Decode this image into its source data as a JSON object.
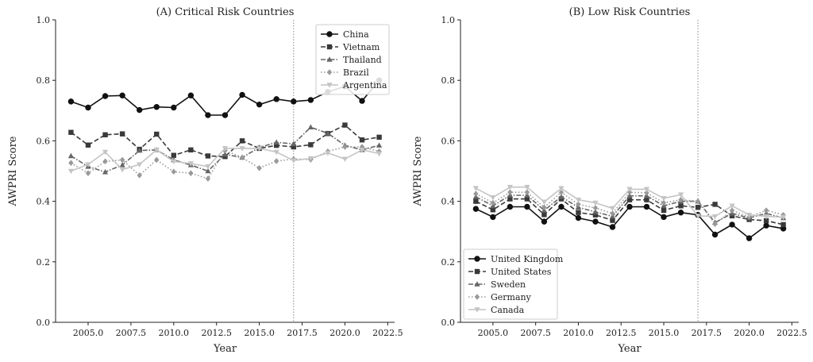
{
  "chart_data": [
    {
      "type": "line",
      "title": "(A) Critical Risk Countries",
      "xlabel": "Year",
      "ylabel": "AWPRI Score",
      "xlim": [
        2003.1,
        2022.9
      ],
      "ylim": [
        0.0,
        1.0
      ],
      "xticks": [
        2005.0,
        2007.5,
        2010.0,
        2012.5,
        2015.0,
        2017.5,
        2020.0,
        2022.5
      ],
      "xtick_labels": [
        "2005.0",
        "2007.5",
        "2010.0",
        "2012.5",
        "2015.0",
        "2017.5",
        "2020.0",
        "2022.5"
      ],
      "yticks": [
        0.0,
        0.2,
        0.4,
        0.6,
        0.8,
        1.0
      ],
      "ytick_labels": [
        "0.0",
        "0.2",
        "0.4",
        "0.6",
        "0.8",
        "1.0"
      ],
      "vline_x": 2017,
      "legend_position": "top-right",
      "x": [
        2004,
        2005,
        2006,
        2007,
        2008,
        2009,
        2010,
        2011,
        2012,
        2013,
        2014,
        2015,
        2016,
        2017,
        2018,
        2019,
        2020,
        2021,
        2022
      ],
      "series": [
        {
          "name": "China",
          "color": "#111111",
          "dash": "solid",
          "marker": "circle",
          "values": [
            0.73,
            0.71,
            0.748,
            0.75,
            0.702,
            0.712,
            0.71,
            0.75,
            0.685,
            0.685,
            0.752,
            0.72,
            0.738,
            0.73,
            0.735,
            0.762,
            0.78,
            0.732,
            0.8
          ]
        },
        {
          "name": "Vietnam",
          "color": "#3a3a3a",
          "dash": "dashed",
          "marker": "square",
          "values": [
            0.628,
            0.586,
            0.62,
            0.623,
            0.572,
            0.622,
            0.552,
            0.57,
            0.55,
            0.548,
            0.6,
            0.575,
            0.585,
            0.58,
            0.587,
            0.624,
            0.652,
            0.603,
            0.612
          ]
        },
        {
          "name": "Thailand",
          "color": "#666666",
          "dash": "dashdot",
          "marker": "triangle-up",
          "values": [
            0.55,
            0.515,
            0.497,
            0.52,
            0.568,
            0.57,
            0.537,
            0.52,
            0.5,
            0.555,
            0.545,
            0.578,
            0.595,
            0.59,
            0.645,
            0.625,
            0.585,
            0.57,
            0.585
          ]
        },
        {
          "name": "Brazil",
          "color": "#999999",
          "dash": "dotted",
          "marker": "diamond",
          "values": [
            0.527,
            0.493,
            0.532,
            0.537,
            0.486,
            0.537,
            0.498,
            0.493,
            0.475,
            0.568,
            0.545,
            0.51,
            0.533,
            0.54,
            0.538,
            0.565,
            0.58,
            0.58,
            0.565
          ]
        },
        {
          "name": "Argentina",
          "color": "#c4c4c4",
          "dash": "solid",
          "marker": "triangle-down",
          "values": [
            0.5,
            0.522,
            0.563,
            0.505,
            0.522,
            0.57,
            0.532,
            0.525,
            0.515,
            0.575,
            0.575,
            0.575,
            0.563,
            0.535,
            0.542,
            0.56,
            0.54,
            0.57,
            0.558
          ]
        }
      ]
    },
    {
      "type": "line",
      "title": "(B) Low Risk Countries",
      "xlabel": "Year",
      "ylabel": "AWPRI Score",
      "xlim": [
        2003.1,
        2022.9
      ],
      "ylim": [
        0.0,
        1.0
      ],
      "xticks": [
        2005.0,
        2007.5,
        2010.0,
        2012.5,
        2015.0,
        2017.5,
        2020.0,
        2022.5
      ],
      "xtick_labels": [
        "2005.0",
        "2007.5",
        "2010.0",
        "2012.5",
        "2015.0",
        "2017.5",
        "2020.0",
        "2022.5"
      ],
      "yticks": [
        0.0,
        0.2,
        0.4,
        0.6,
        0.8,
        1.0
      ],
      "ytick_labels": [
        "0.0",
        "0.2",
        "0.4",
        "0.6",
        "0.8",
        "1.0"
      ],
      "vline_x": 2017,
      "legend_position": "bottom-left",
      "x": [
        2004,
        2005,
        2006,
        2007,
        2008,
        2009,
        2010,
        2011,
        2012,
        2013,
        2014,
        2015,
        2016,
        2017,
        2018,
        2019,
        2020,
        2021,
        2022
      ],
      "series": [
        {
          "name": "United Kingdom",
          "color": "#111111",
          "dash": "solid",
          "marker": "circle",
          "values": [
            0.375,
            0.348,
            0.382,
            0.382,
            0.333,
            0.382,
            0.345,
            0.333,
            0.315,
            0.382,
            0.382,
            0.348,
            0.363,
            0.355,
            0.29,
            0.323,
            0.278,
            0.32,
            0.31
          ]
        },
        {
          "name": "United States",
          "color": "#3a3a3a",
          "dash": "dashed",
          "marker": "square",
          "values": [
            0.4,
            0.372,
            0.408,
            0.408,
            0.356,
            0.408,
            0.363,
            0.355,
            0.337,
            0.405,
            0.405,
            0.37,
            0.385,
            0.38,
            0.39,
            0.352,
            0.34,
            0.336,
            0.323
          ]
        },
        {
          "name": "Sweden",
          "color": "#666666",
          "dash": "dashdot",
          "marker": "triangle-up",
          "values": [
            0.415,
            0.385,
            0.42,
            0.42,
            0.37,
            0.415,
            0.38,
            0.365,
            0.35,
            0.418,
            0.418,
            0.385,
            0.4,
            0.4,
            0.33,
            0.36,
            0.345,
            0.36,
            0.345
          ]
        },
        {
          "name": "Germany",
          "color": "#999999",
          "dash": "dotted",
          "marker": "diamond",
          "values": [
            0.425,
            0.395,
            0.43,
            0.43,
            0.38,
            0.43,
            0.39,
            0.378,
            0.36,
            0.43,
            0.428,
            0.395,
            0.405,
            0.4,
            0.325,
            0.37,
            0.348,
            0.37,
            0.355
          ]
        },
        {
          "name": "Canada",
          "color": "#c4c4c4",
          "dash": "solid",
          "marker": "triangle-down",
          "values": [
            0.443,
            0.413,
            0.447,
            0.447,
            0.398,
            0.443,
            0.405,
            0.395,
            0.377,
            0.44,
            0.44,
            0.41,
            0.422,
            0.352,
            0.35,
            0.385,
            0.355,
            0.35,
            0.348
          ]
        }
      ]
    }
  ]
}
